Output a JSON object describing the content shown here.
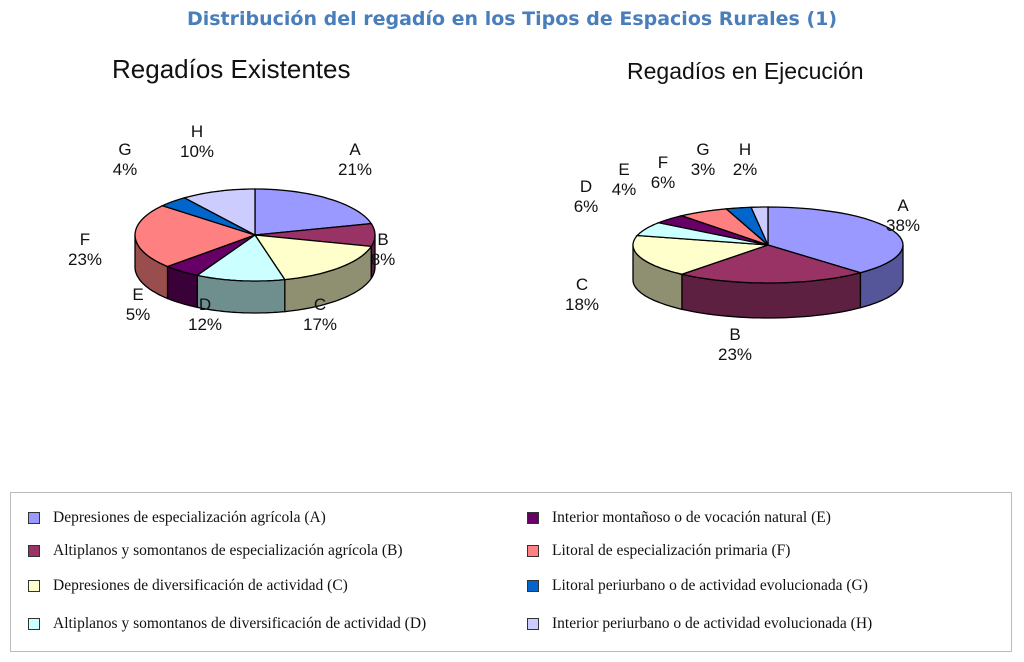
{
  "title": "Distribución del regadío en los Tipos de Espacios Rurales (1)",
  "chart_data": [
    {
      "type": "pie",
      "title": "Regadíos Existentes",
      "categories": [
        "A",
        "B",
        "C",
        "D",
        "E",
        "F",
        "G",
        "H"
      ],
      "values": [
        21,
        8,
        17,
        12,
        5,
        23,
        4,
        10
      ],
      "labels": [
        "21%",
        "8%",
        "17%",
        "12%",
        "5%",
        "23%",
        "4%",
        "10%"
      ]
    },
    {
      "type": "pie",
      "title": "Regadíos en Ejecución",
      "categories": [
        "A",
        "B",
        "C",
        "D",
        "E",
        "F",
        "G",
        "H"
      ],
      "values": [
        38,
        23,
        18,
        6,
        4,
        6,
        3,
        2
      ],
      "labels": [
        "38%",
        "23%",
        "18%",
        "6%",
        "4%",
        "6%",
        "3%",
        "2%"
      ]
    }
  ],
  "colors": [
    "#9999ff",
    "#993366",
    "#ffffcc",
    "#ccffff",
    "#660066",
    "#ff8080",
    "#0066cc",
    "#ccccff"
  ],
  "side_colors": [
    "#55559a",
    "#5e2040",
    "#8f8f72",
    "#6f8f8f",
    "#3a0038",
    "#9a4d4d",
    "#003d7a",
    "#7a7a99"
  ],
  "legend": [
    "Depresiones de especialización agrícola (A)",
    "Altiplanos y somontanos de especialización agrícola (B)",
    "Depresiones de diversificación de actividad (C)",
    "Altiplanos y somontanos de diversificación de actividad (D)",
    "Interior montañoso o de vocación natural (E)",
    "Litoral de especialización primaria (F)",
    "Litoral periurbano o de actividad evolucionada (G)",
    "Interior periurbano o de actividad evolucionada (H)"
  ]
}
